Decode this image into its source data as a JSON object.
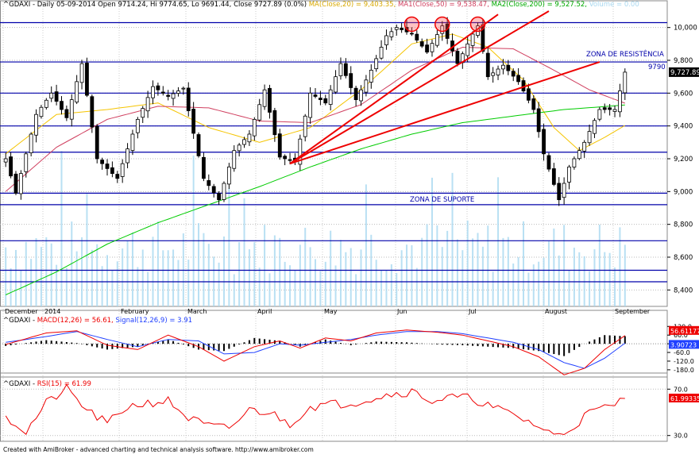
{
  "header": {
    "symbol": "^GDAXI",
    "period": "Daily",
    "date": "05-09-2014",
    "ohlc": "Open 9714.24, Hi 9774.65, Lo 9691.44, Close 9727.89 (0.0%)",
    "ma20": "MA(Close,20) = 9,403.35,",
    "ma50": "MA1(Close,50) = 9,538.47,",
    "ma200": "MA2(Close,200) = 9,527.52,",
    "volume": "Volume = 0.00"
  },
  "macd_header": {
    "symbol": "^GDAXI",
    "macd": "MACD(12,26) = 56.61,",
    "signal": "Signal(12,26,9) = 3.91"
  },
  "rsi_header": {
    "symbol": "^GDAXI",
    "rsi": "RSI(15) = 61.99"
  },
  "footer": "Created with AmiBroker - advanced charting and technical analysis software. http://www.amibroker.com",
  "colors": {
    "up_candle": "#ffffff",
    "down_candle": "#000000",
    "ma20": "#f5c400",
    "ma50": "#d04060",
    "ma200": "#00cc00",
    "levels": "#0000aa",
    "trendlines": "#ee0000",
    "volume": "#a8d8f0",
    "macd": "#ee0000",
    "signal": "#2040ff",
    "rsi": "#ee0000",
    "price_tag": "#000000",
    "macd_tag": "#ee0000",
    "signal_tag": "#2040ff"
  },
  "chart_data": [
    {
      "type": "candlestick",
      "panel": "price",
      "ylim": [
        8300,
        10100
      ],
      "y_ticks": [
        "10,000",
        "9,800",
        "9,600",
        "9,400",
        "9,200",
        "9,000",
        "8,800",
        "8,600",
        "8,400"
      ],
      "x_labels": [
        "December",
        "2014",
        "February",
        "March",
        "April",
        "May",
        "Jun",
        "Jul",
        "August",
        "September"
      ],
      "last_close": 9727.89,
      "last_close_label": "9,727.89",
      "horizontal_levels": [
        10030,
        9790,
        9600,
        9400,
        9240,
        8990,
        8920,
        8700,
        8520,
        8450
      ],
      "level_label_value": "9790",
      "annotations": [
        "ZONA DE RESISTÊNCIA",
        "ZONA DE SUPORTE"
      ],
      "trendlines_from": {
        "bar": 56,
        "value": 9170
      },
      "trendlines_to": [
        {
          "bar": 107,
          "value": 10100
        },
        {
          "bar": 97,
          "value": 10080
        },
        {
          "bar": 117,
          "value": 9790
        }
      ],
      "circled_peaks_bars": [
        80,
        86,
        93
      ],
      "anchors": [
        [
          0,
          9200
        ],
        [
          2,
          8990
        ],
        [
          6,
          9470
        ],
        [
          9,
          9600
        ],
        [
          12,
          9450
        ],
        [
          15,
          9780
        ],
        [
          18,
          9200
        ],
        [
          22,
          9080
        ],
        [
          26,
          9440
        ],
        [
          29,
          9640
        ],
        [
          32,
          9580
        ],
        [
          35,
          9630
        ],
        [
          39,
          9080
        ],
        [
          42,
          8950
        ],
        [
          45,
          9250
        ],
        [
          48,
          9350
        ],
        [
          51,
          9620
        ],
        [
          54,
          9210
        ],
        [
          57,
          9180
        ],
        [
          60,
          9600
        ],
        [
          63,
          9540
        ],
        [
          66,
          9780
        ],
        [
          69,
          9560
        ],
        [
          72,
          9740
        ],
        [
          75,
          9950
        ],
        [
          77,
          10000
        ],
        [
          80,
          9960
        ],
        [
          83,
          9850
        ],
        [
          86,
          10010
        ],
        [
          89,
          9780
        ],
        [
          92,
          9960
        ],
        [
          93,
          10010
        ],
        [
          95,
          9700
        ],
        [
          98,
          9770
        ],
        [
          101,
          9670
        ],
        [
          104,
          9500
        ],
        [
          106,
          9230
        ],
        [
          109,
          8950
        ],
        [
          111,
          9150
        ],
        [
          114,
          9300
        ],
        [
          117,
          9500
        ],
        [
          120,
          9500
        ],
        [
          122,
          9727.89
        ]
      ],
      "series": [
        {
          "name": "MA(Close,20)",
          "anchors": [
            [
              0,
              9230
            ],
            [
              10,
              9470
            ],
            [
              20,
              9500
            ],
            [
              30,
              9540
            ],
            [
              40,
              9390
            ],
            [
              50,
              9300
            ],
            [
              60,
              9390
            ],
            [
              70,
              9620
            ],
            [
              80,
              9900
            ],
            [
              88,
              9960
            ],
            [
              95,
              9880
            ],
            [
              102,
              9680
            ],
            [
              108,
              9390
            ],
            [
              113,
              9250
            ],
            [
              118,
              9330
            ],
            [
              122,
              9403.35
            ]
          ]
        },
        {
          "name": "MA1(Close,50)",
          "anchors": [
            [
              0,
              9000
            ],
            [
              10,
              9270
            ],
            [
              20,
              9440
            ],
            [
              30,
              9520
            ],
            [
              40,
              9510
            ],
            [
              50,
              9430
            ],
            [
              60,
              9420
            ],
            [
              70,
              9530
            ],
            [
              80,
              9740
            ],
            [
              90,
              9880
            ],
            [
              100,
              9870
            ],
            [
              108,
              9740
            ],
            [
              115,
              9620
            ],
            [
              122,
              9538.47
            ]
          ]
        },
        {
          "name": "MA2(Close,200)",
          "anchors": [
            [
              0,
              8370
            ],
            [
              10,
              8510
            ],
            [
              20,
              8680
            ],
            [
              30,
              8810
            ],
            [
              40,
              8920
            ],
            [
              50,
              9030
            ],
            [
              60,
              9150
            ],
            [
              70,
              9260
            ],
            [
              80,
              9350
            ],
            [
              90,
              9420
            ],
            [
              100,
              9460
            ],
            [
              110,
              9500
            ],
            [
              122,
              9527.52
            ]
          ]
        }
      ],
      "volume_bar_count": 123
    },
    {
      "type": "line",
      "panel": "macd",
      "ylim": [
        -230,
        160
      ],
      "y_ticks": [
        "120.0",
        "60.0",
        "0.0",
        "-60.0",
        "-120.0",
        "-180.0"
      ],
      "last_macd_label": "56.61177",
      "last_signal_label": "3.90723",
      "series": [
        {
          "name": "MACD(12,26)",
          "anchors": [
            [
              0,
              -5
            ],
            [
              8,
              75
            ],
            [
              14,
              90
            ],
            [
              20,
              -10
            ],
            [
              26,
              -40
            ],
            [
              32,
              60
            ],
            [
              38,
              -20
            ],
            [
              43,
              -120
            ],
            [
              49,
              -20
            ],
            [
              54,
              20
            ],
            [
              58,
              -30
            ],
            [
              63,
              40
            ],
            [
              68,
              20
            ],
            [
              73,
              75
            ],
            [
              79,
              95
            ],
            [
              85,
              80
            ],
            [
              90,
              60
            ],
            [
              95,
              20
            ],
            [
              100,
              -20
            ],
            [
              105,
              -90
            ],
            [
              110,
              -215
            ],
            [
              114,
              -170
            ],
            [
              118,
              -40
            ],
            [
              122,
              56.61
            ]
          ]
        },
        {
          "name": "Signal(12,26,9)",
          "anchors": [
            [
              0,
              10
            ],
            [
              8,
              50
            ],
            [
              14,
              85
            ],
            [
              20,
              30
            ],
            [
              26,
              -20
            ],
            [
              32,
              30
            ],
            [
              38,
              20
            ],
            [
              43,
              -70
            ],
            [
              49,
              -60
            ],
            [
              54,
              0
            ],
            [
              58,
              -10
            ],
            [
              63,
              10
            ],
            [
              68,
              30
            ],
            [
              73,
              60
            ],
            [
              79,
              85
            ],
            [
              85,
              85
            ],
            [
              90,
              70
            ],
            [
              95,
              40
            ],
            [
              100,
              10
            ],
            [
              105,
              -40
            ],
            [
              110,
              -130
            ],
            [
              114,
              -170
            ],
            [
              118,
              -100
            ],
            [
              122,
              3.91
            ]
          ]
        }
      ]
    },
    {
      "type": "line",
      "panel": "rsi",
      "ylim": [
        25,
        75
      ],
      "y_ticks": [
        "70.0",
        "30.0"
      ],
      "last_rsi_label": "61.99335",
      "series": [
        {
          "name": "RSI(15)",
          "anchors": [
            [
              0,
              47
            ],
            [
              4,
              33
            ],
            [
              8,
              58
            ],
            [
              12,
              70
            ],
            [
              16,
              52
            ],
            [
              20,
              40
            ],
            [
              24,
              55
            ],
            [
              28,
              58
            ],
            [
              32,
              60
            ],
            [
              36,
              45
            ],
            [
              40,
              38
            ],
            [
              44,
              36
            ],
            [
              48,
              52
            ],
            [
              52,
              50
            ],
            [
              56,
              40
            ],
            [
              60,
              55
            ],
            [
              64,
              57
            ],
            [
              68,
              58
            ],
            [
              72,
              62
            ],
            [
              76,
              66
            ],
            [
              80,
              68
            ],
            [
              84,
              60
            ],
            [
              88,
              63
            ],
            [
              92,
              62
            ],
            [
              96,
              54
            ],
            [
              100,
              48
            ],
            [
              104,
              40
            ],
            [
              108,
              30
            ],
            [
              111,
              35
            ],
            [
              115,
              50
            ],
            [
              119,
              55
            ],
            [
              122,
              61.99
            ]
          ]
        }
      ]
    }
  ]
}
